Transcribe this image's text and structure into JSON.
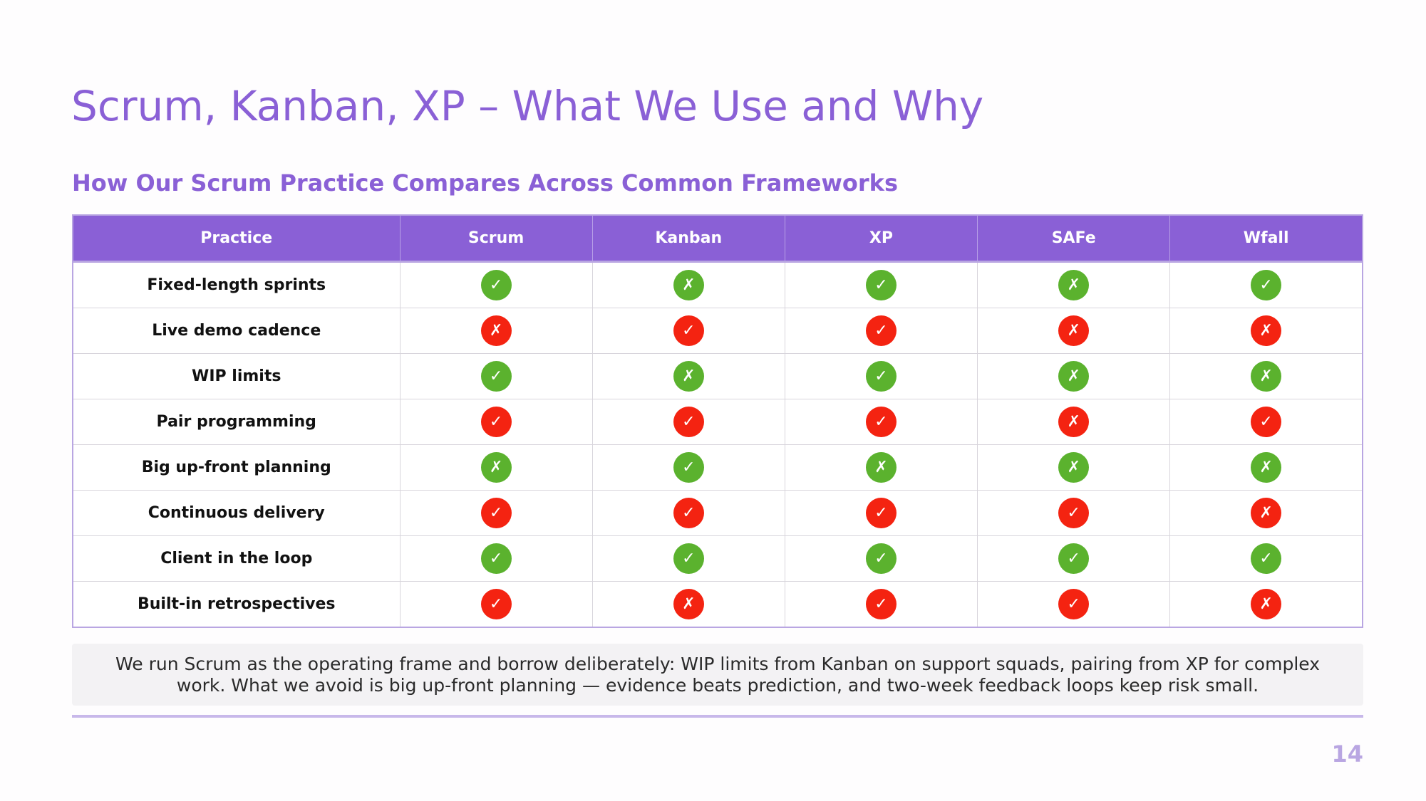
{
  "slide": {
    "title": "Scrum, Kanban, XP – What We Use and Why",
    "subtitle": "How Our Scrum Practice Compares Across Common Frameworks",
    "page_number": "14"
  },
  "table": {
    "columns": [
      "Practice",
      "Scrum",
      "Kanban",
      "XP",
      "SAFe",
      "Wfall"
    ],
    "rows": [
      {
        "practice": "Fixed-length sprints",
        "marks": [
          {
            "glyph": "✓",
            "color": "green"
          },
          {
            "glyph": "✗",
            "color": "green"
          },
          {
            "glyph": "✓",
            "color": "green"
          },
          {
            "glyph": "✗",
            "color": "green"
          },
          {
            "glyph": "✓",
            "color": "green"
          }
        ]
      },
      {
        "practice": "Live demo cadence",
        "marks": [
          {
            "glyph": "✗",
            "color": "red"
          },
          {
            "glyph": "✓",
            "color": "red"
          },
          {
            "glyph": "✓",
            "color": "red"
          },
          {
            "glyph": "✗",
            "color": "red"
          },
          {
            "glyph": "✗",
            "color": "red"
          }
        ]
      },
      {
        "practice": "WIP limits",
        "marks": [
          {
            "glyph": "✓",
            "color": "green"
          },
          {
            "glyph": "✗",
            "color": "green"
          },
          {
            "glyph": "✓",
            "color": "green"
          },
          {
            "glyph": "✗",
            "color": "green"
          },
          {
            "glyph": "✗",
            "color": "green"
          }
        ]
      },
      {
        "practice": "Pair programming",
        "marks": [
          {
            "glyph": "✓",
            "color": "red"
          },
          {
            "glyph": "✓",
            "color": "red"
          },
          {
            "glyph": "✓",
            "color": "red"
          },
          {
            "glyph": "✗",
            "color": "red"
          },
          {
            "glyph": "✓",
            "color": "red"
          }
        ]
      },
      {
        "practice": "Big up-front planning",
        "marks": [
          {
            "glyph": "✗",
            "color": "green"
          },
          {
            "glyph": "✓",
            "color": "green"
          },
          {
            "glyph": "✗",
            "color": "green"
          },
          {
            "glyph": "✗",
            "color": "green"
          },
          {
            "glyph": "✗",
            "color": "green"
          }
        ]
      },
      {
        "practice": "Continuous delivery",
        "marks": [
          {
            "glyph": "✓",
            "color": "red"
          },
          {
            "glyph": "✓",
            "color": "red"
          },
          {
            "glyph": "✓",
            "color": "red"
          },
          {
            "glyph": "✓",
            "color": "red"
          },
          {
            "glyph": "✗",
            "color": "red"
          }
        ]
      },
      {
        "practice": "Client in the loop",
        "marks": [
          {
            "glyph": "✓",
            "color": "green"
          },
          {
            "glyph": "✓",
            "color": "green"
          },
          {
            "glyph": "✓",
            "color": "green"
          },
          {
            "glyph": "✓",
            "color": "green"
          },
          {
            "glyph": "✓",
            "color": "green"
          }
        ]
      },
      {
        "practice": "Built-in retrospectives",
        "marks": [
          {
            "glyph": "✓",
            "color": "red"
          },
          {
            "glyph": "✗",
            "color": "red"
          },
          {
            "glyph": "✓",
            "color": "red"
          },
          {
            "glyph": "✓",
            "color": "red"
          },
          {
            "glyph": "✗",
            "color": "red"
          }
        ]
      }
    ]
  },
  "note": {
    "text": "We run Scrum as the operating frame and borrow deliberately: WIP limits from Kanban on support squads, pairing from XP for complex work. What we avoid is big up-front planning — evidence beats prediction, and two-week feedback loops keep risk small."
  },
  "colors": {
    "accent": "#8A60D6",
    "green": "#5BB22E",
    "red": "#F42311",
    "border": "#B9A6E2"
  }
}
